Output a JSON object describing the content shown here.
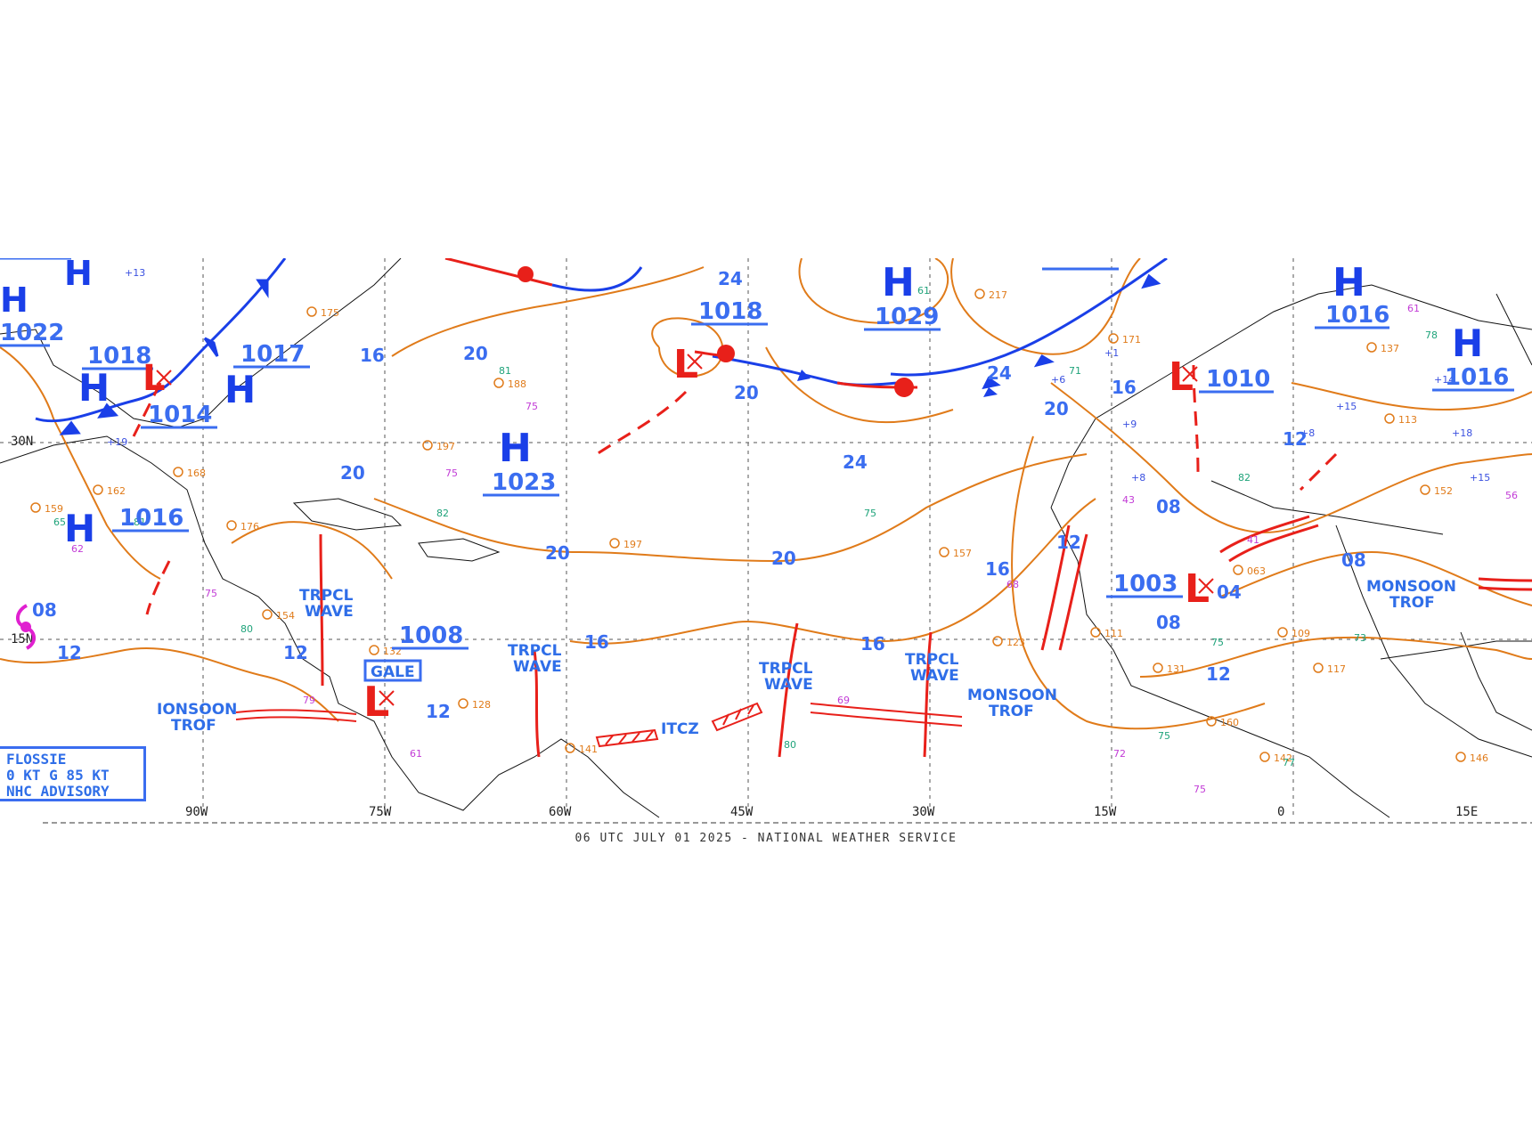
{
  "footer": "06 UTC JULY 01 2025 - NATIONAL WEATHER SERVICE",
  "colors": {
    "isobar": "#e07b1a",
    "high": "#1a3fe8",
    "low": "#e8201a",
    "label": "#3a6df0",
    "trough": "#e8201a",
    "grid": "#555555"
  },
  "longitudes": [
    "90W",
    "75W",
    "60W",
    "45W",
    "30W",
    "15W",
    "0",
    "15E"
  ],
  "latitudes": [
    "30N",
    "15N"
  ],
  "highs": [
    {
      "letter": "H",
      "pressure": "1022"
    },
    {
      "letter": "H",
      "pressure": "1018"
    },
    {
      "letter": "H",
      "pressure": "1017"
    },
    {
      "letter": "H",
      "pressure": "1016"
    },
    {
      "letter": "H",
      "pressure": "1023"
    },
    {
      "letter": "H",
      "pressure": "1029"
    },
    {
      "letter": "H",
      "pressure": "1016"
    },
    {
      "letter": "H",
      "pressure": "1016"
    }
  ],
  "lows": [
    {
      "letter": "L",
      "pressure": "1014"
    },
    {
      "letter": "L",
      "pressure": "1018"
    },
    {
      "letter": "L",
      "pressure": "1008"
    },
    {
      "letter": "L",
      "pressure": "1010"
    },
    {
      "letter": "L",
      "pressure": "1003"
    }
  ],
  "isobar_labels": [
    "24",
    "20",
    "20",
    "20",
    "20",
    "24",
    "24",
    "20",
    "16",
    "16",
    "16",
    "16",
    "16",
    "12",
    "12",
    "12",
    "12",
    "12",
    "12",
    "08",
    "08",
    "08",
    "08",
    "04",
    "20"
  ],
  "features": {
    "trpcl_wave": [
      "TRPCL",
      "WAVE"
    ],
    "monsoon_trof": [
      "MONSOON",
      "TROF"
    ],
    "ionsoon_trof": [
      "IONSOON",
      "TROF"
    ],
    "itcz": "ITCZ",
    "gale": "GALE"
  },
  "advisory": {
    "line1": "FLOSSIE",
    "line2": "0 KT G 85 KT",
    "line3": "NHC ADVISORY"
  }
}
